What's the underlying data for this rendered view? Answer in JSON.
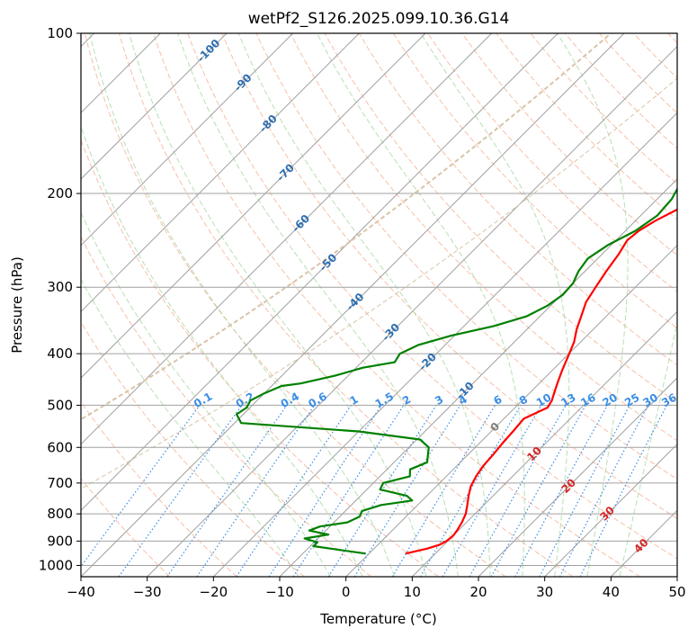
{
  "chart_data": {
    "type": "line",
    "title": "wetPf2_S126.2025.099.10.36.G14",
    "xlabel": "Temperature (°C)",
    "ylabel": "Pressure (hPa)",
    "xlim": [
      -40,
      50
    ],
    "ylim": [
      1050,
      100
    ],
    "y_scale": "log",
    "grid": true,
    "x_ticks": [
      -40,
      -30,
      -20,
      -10,
      0,
      10,
      20,
      30,
      40,
      50
    ],
    "x_tick_labels": [
      "−40",
      "−30",
      "−20",
      "−10",
      "0",
      "10",
      "20",
      "30",
      "40",
      "50"
    ],
    "y_ticks": [
      100,
      200,
      300,
      400,
      500,
      600,
      700,
      800,
      900,
      1000
    ],
    "y_tick_labels": [
      "100",
      "200",
      "300",
      "400",
      "500",
      "600",
      "700",
      "800",
      "900",
      "1000"
    ],
    "series": [
      {
        "name": "",
        "color": "#ff0000",
        "pressure": [
          950,
          930,
          915,
          900,
          880,
          860,
          830,
          800,
          770,
          740,
          710,
          680,
          650,
          620,
          590,
          560,
          530,
          505,
          490,
          470,
          450,
          430,
          405,
          380,
          360,
          340,
          320,
          300,
          280,
          260,
          245,
          235,
          225,
          215,
          205,
          195,
          185,
          175,
          165,
          155,
          148,
          140,
          132,
          125,
          118,
          112,
          106,
          101
        ],
        "values": [
          5.5,
          8,
          9.3,
          9.8,
          10,
          9.8,
          9.3,
          8.6,
          7.5,
          6.3,
          5.2,
          4.5,
          4,
          3.8,
          3.5,
          3.3,
          3,
          4.9,
          4.5,
          3.5,
          2.5,
          1.5,
          0.3,
          -1,
          -2.5,
          -3.8,
          -5.2,
          -6,
          -6.8,
          -7.5,
          -8.3,
          -8,
          -7,
          -5.5,
          -3.5,
          -1,
          1.5,
          4,
          6.5,
          9.2,
          11.6,
          13,
          14.8,
          16.5,
          18,
          19.5,
          21.2,
          22.5
        ]
      },
      {
        "name": "",
        "color": "#008000",
        "pressure": [
          950,
          935,
          920,
          905,
          890,
          875,
          860,
          845,
          830,
          810,
          790,
          770,
          755,
          740,
          720,
          700,
          680,
          660,
          640,
          620,
          600,
          580,
          560,
          540,
          520,
          505,
          490,
          475,
          460,
          455,
          440,
          425,
          415,
          400,
          385,
          370,
          355,
          340,
          325,
          310,
          295,
          280,
          265,
          250,
          235,
          220,
          205,
          190,
          175,
          160,
          150,
          140,
          130,
          120,
          112,
          106,
          100
        ],
        "values": [
          -0.5,
          -5,
          -9.5,
          -9.5,
          -12,
          -9,
          -12.5,
          -11.5,
          -8,
          -7,
          -7.5,
          -5.5,
          -1.5,
          -3,
          -8,
          -8.5,
          -5.5,
          -6.5,
          -5,
          -6,
          -7,
          -9.5,
          -20,
          -39,
          -41,
          -40.5,
          -41,
          -40,
          -38.5,
          -36,
          -32,
          -29,
          -25,
          -25.5,
          -24,
          -20.5,
          -15.5,
          -12,
          -10.5,
          -9.8,
          -10,
          -11,
          -11.5,
          -10.5,
          -8.5,
          -7.5,
          -7.8,
          -9,
          -10.5,
          -12,
          -11.5,
          -10.5,
          -9,
          -7,
          -5,
          -3,
          -1
        ]
      }
    ],
    "isotherm_labels": [
      {
        "t": -100,
        "label": "-100"
      },
      {
        "t": -90,
        "label": "-90"
      },
      {
        "t": -80,
        "label": "-80"
      },
      {
        "t": -70,
        "label": "-70"
      },
      {
        "t": -60,
        "label": "-60"
      },
      {
        "t": -50,
        "label": "-50"
      },
      {
        "t": -40,
        "label": "-40"
      },
      {
        "t": -30,
        "label": "-30"
      },
      {
        "t": -20,
        "label": "-20"
      },
      {
        "t": -10,
        "label": "-10"
      }
    ],
    "zero_isotherm_label": "0",
    "warm_isotherm_labels": [
      "10",
      "20",
      "30",
      "40"
    ],
    "mixing_ratio_labels": [
      "0.1",
      "0.2",
      "0.4",
      "0.6",
      "1",
      "1.5",
      "2",
      "3",
      "4",
      "6",
      "8",
      "10",
      "13",
      "16",
      "20",
      "25",
      "30",
      "36"
    ],
    "colors": {
      "isotherm_grid": "#a0a0a0",
      "dry_adiabat": "#f4a582",
      "moist_adiabat": "#a6d7a0",
      "mixing_ratio": "#3a8ee6",
      "isotherm_label_cold": "#2f6fb0",
      "isotherm_label_warm": "#d62728",
      "isotherm_label_zero": "#7f7f7f",
      "outer_curve": "#d9c4a8"
    }
  }
}
